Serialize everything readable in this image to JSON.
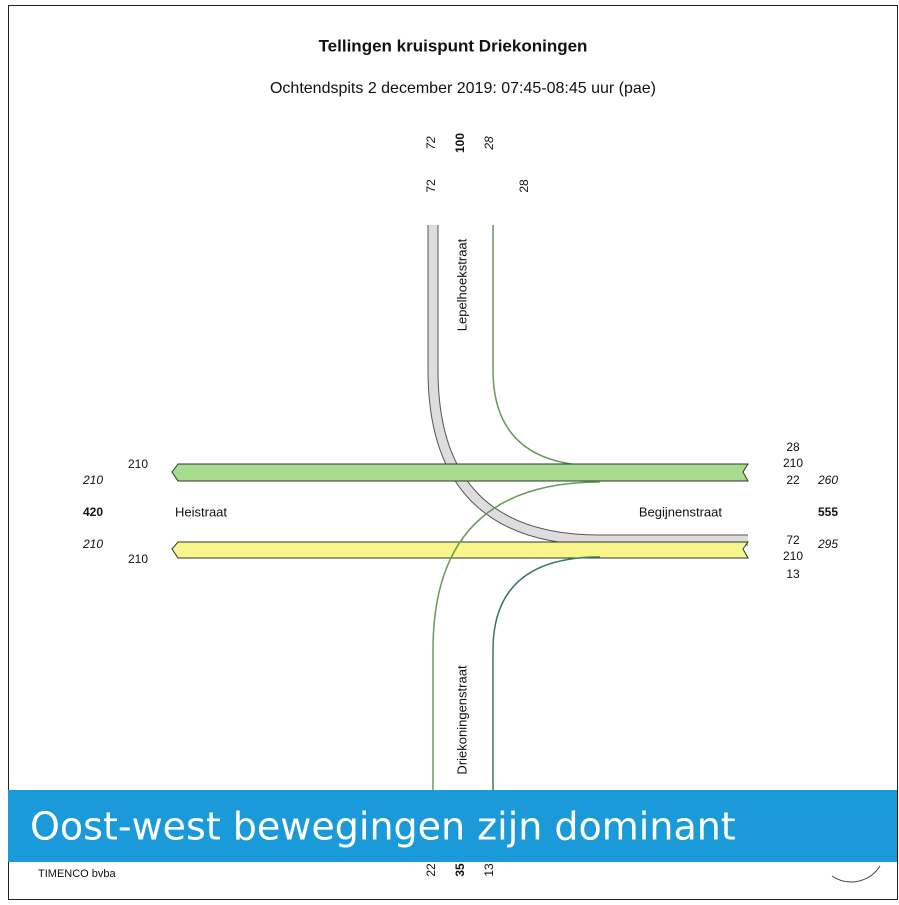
{
  "header": {
    "title": "Tellingen kruispunt Driekoningen",
    "subtitle": "Ochtendspits 2 december 2019: 07:45-08:45 uur (pae)"
  },
  "north": {
    "street": "Lepelhoekstraat",
    "top": [
      72,
      100,
      28
    ],
    "bottom": [
      72,
      28
    ]
  },
  "south": {
    "street": "Driekoningenstraat",
    "values": [
      22,
      35,
      13
    ]
  },
  "west": {
    "street": "Heistraat",
    "in": 210,
    "in_total": 210,
    "total": 420,
    "out_total": 210,
    "out": 210
  },
  "east": {
    "street": "Begijnenstraat",
    "in": [
      28,
      210,
      22
    ],
    "in_total": 260,
    "total": 555,
    "out_total": 295,
    "out": [
      72,
      210,
      13
    ]
  },
  "footer": "TIMENCO bvba",
  "banner": "Oost-west bewegingen zijn dominant"
}
